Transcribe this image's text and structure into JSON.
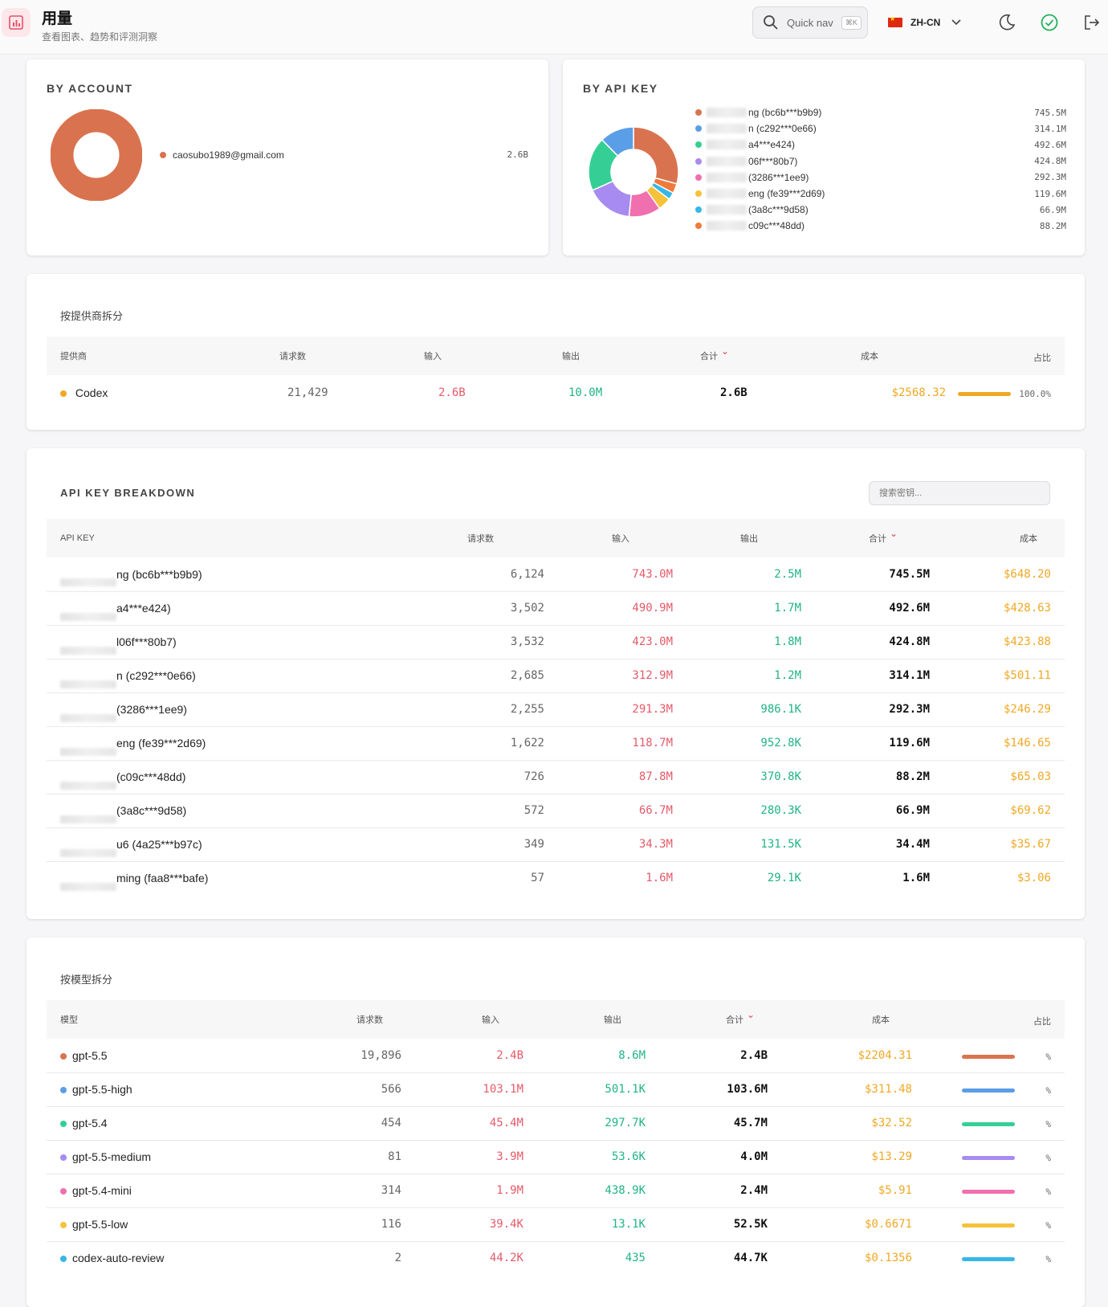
{
  "header": {
    "title": "用量",
    "subtitle": "查看图表、趋势和评测洞察",
    "quicknav_label": "Quick nav",
    "quicknav_shortcut": "⌘K",
    "language": "ZH-CN"
  },
  "by_account": {
    "title": "BY ACCOUNT",
    "items": [
      {
        "label": "caosubo1989@gmail.com",
        "value": "2.6B",
        "color": "#d9734f"
      }
    ]
  },
  "by_api_key": {
    "title": "BY API KEY",
    "items": [
      {
        "label": "ng (bc6b***b9b9)",
        "value": "745.5M",
        "color": "#d9734f"
      },
      {
        "label": "n (c292***0e66)",
        "value": "314.1M",
        "color": "#5b9ee8"
      },
      {
        "label": "a4***e424)",
        "value": "492.6M",
        "color": "#35cf95"
      },
      {
        "label": "06f***80b7)",
        "value": "424.8M",
        "color": "#a78bf0"
      },
      {
        "label": "(3286***1ee9)",
        "value": "292.3M",
        "color": "#f06fae"
      },
      {
        "label": "eng (fe39***2d69)",
        "value": "119.6M",
        "color": "#f5c23a"
      },
      {
        "label": "(3a8c***9d58)",
        "value": "66.9M",
        "color": "#37b7e8"
      },
      {
        "label": "c09c***48dd)",
        "value": "88.2M",
        "color": "#f07a3a"
      }
    ]
  },
  "provider": {
    "title": "按提供商拆分",
    "headers": [
      "提供商",
      "请求数",
      "输入",
      "输出",
      "合计",
      "成本",
      "占比"
    ],
    "rows": [
      {
        "name": "Codex",
        "color": "#f0a824",
        "requests": "21,429",
        "input": "2.6B",
        "output": "10.0M",
        "total": "2.6B",
        "cost": "$2568.32",
        "share": "100.0%",
        "share_fraction": 1.0
      }
    ]
  },
  "api_breakdown": {
    "title": "API KEY BREAKDOWN",
    "search_placeholder": "搜索密钥...",
    "headers": [
      "API KEY",
      "请求数",
      "输入",
      "输出",
      "合计",
      "成本"
    ],
    "rows": [
      {
        "key": "ng (bc6b***b9b9)",
        "requests": "6,124",
        "input": "743.0M",
        "output": "2.5M",
        "total": "745.5M",
        "cost": "$648.20"
      },
      {
        "key": "a4***e424)",
        "requests": "3,502",
        "input": "490.9M",
        "output": "1.7M",
        "total": "492.6M",
        "cost": "$428.63"
      },
      {
        "key": "l06f***80b7)",
        "requests": "3,532",
        "input": "423.0M",
        "output": "1.8M",
        "total": "424.8M",
        "cost": "$423.88"
      },
      {
        "key": "n (c292***0e66)",
        "requests": "2,685",
        "input": "312.9M",
        "output": "1.2M",
        "total": "314.1M",
        "cost": "$501.11"
      },
      {
        "key": "(3286***1ee9)",
        "requests": "2,255",
        "input": "291.3M",
        "output": "986.1K",
        "total": "292.3M",
        "cost": "$246.29"
      },
      {
        "key": "eng (fe39***2d69)",
        "requests": "1,622",
        "input": "118.7M",
        "output": "952.8K",
        "total": "119.6M",
        "cost": "$146.65"
      },
      {
        "key": "(c09c***48dd)",
        "requests": "726",
        "input": "87.8M",
        "output": "370.8K",
        "total": "88.2M",
        "cost": "$65.03"
      },
      {
        "key": "(3a8c***9d58)",
        "requests": "572",
        "input": "66.7M",
        "output": "280.3K",
        "total": "66.9M",
        "cost": "$69.62"
      },
      {
        "key": "u6 (4a25***b97c)",
        "requests": "349",
        "input": "34.3M",
        "output": "131.5K",
        "total": "34.4M",
        "cost": "$35.67"
      },
      {
        "key": "ming (faa8***bafe)",
        "requests": "57",
        "input": "1.6M",
        "output": "29.1K",
        "total": "1.6M",
        "cost": "$3.06"
      }
    ]
  },
  "models": {
    "title": "按模型拆分",
    "headers": [
      "模型",
      "请求数",
      "输入",
      "输出",
      "合计",
      "成本",
      "占比"
    ],
    "rows": [
      {
        "name": "gpt-5.5",
        "color": "#d9734f",
        "requests": "19,896",
        "input": "2.4B",
        "output": "8.6M",
        "total": "2.4B",
        "cost": "$2204.31",
        "share": "%"
      },
      {
        "name": "gpt-5.5-high",
        "color": "#5b9ee8",
        "requests": "566",
        "input": "103.1M",
        "output": "501.1K",
        "total": "103.6M",
        "cost": "$311.48",
        "share": "%"
      },
      {
        "name": "gpt-5.4",
        "color": "#35cf95",
        "requests": "454",
        "input": "45.4M",
        "output": "297.7K",
        "total": "45.7M",
        "cost": "$32.52",
        "share": "%"
      },
      {
        "name": "gpt-5.5-medium",
        "color": "#a78bf0",
        "requests": "81",
        "input": "3.9M",
        "output": "53.6K",
        "total": "4.0M",
        "cost": "$13.29",
        "share": "%"
      },
      {
        "name": "gpt-5.4-mini",
        "color": "#f06fae",
        "requests": "314",
        "input": "1.9M",
        "output": "438.9K",
        "total": "2.4M",
        "cost": "$5.91",
        "share": "%"
      },
      {
        "name": "gpt-5.5-low",
        "color": "#f5c23a",
        "requests": "116",
        "input": "39.4K",
        "output": "13.1K",
        "total": "52.5K",
        "cost": "$0.6671",
        "share": "%"
      },
      {
        "name": "codex-auto-review",
        "color": "#37b7e8",
        "requests": "2",
        "input": "44.2K",
        "output": "435",
        "total": "44.7K",
        "cost": "$0.1356",
        "share": "%"
      }
    ]
  }
}
